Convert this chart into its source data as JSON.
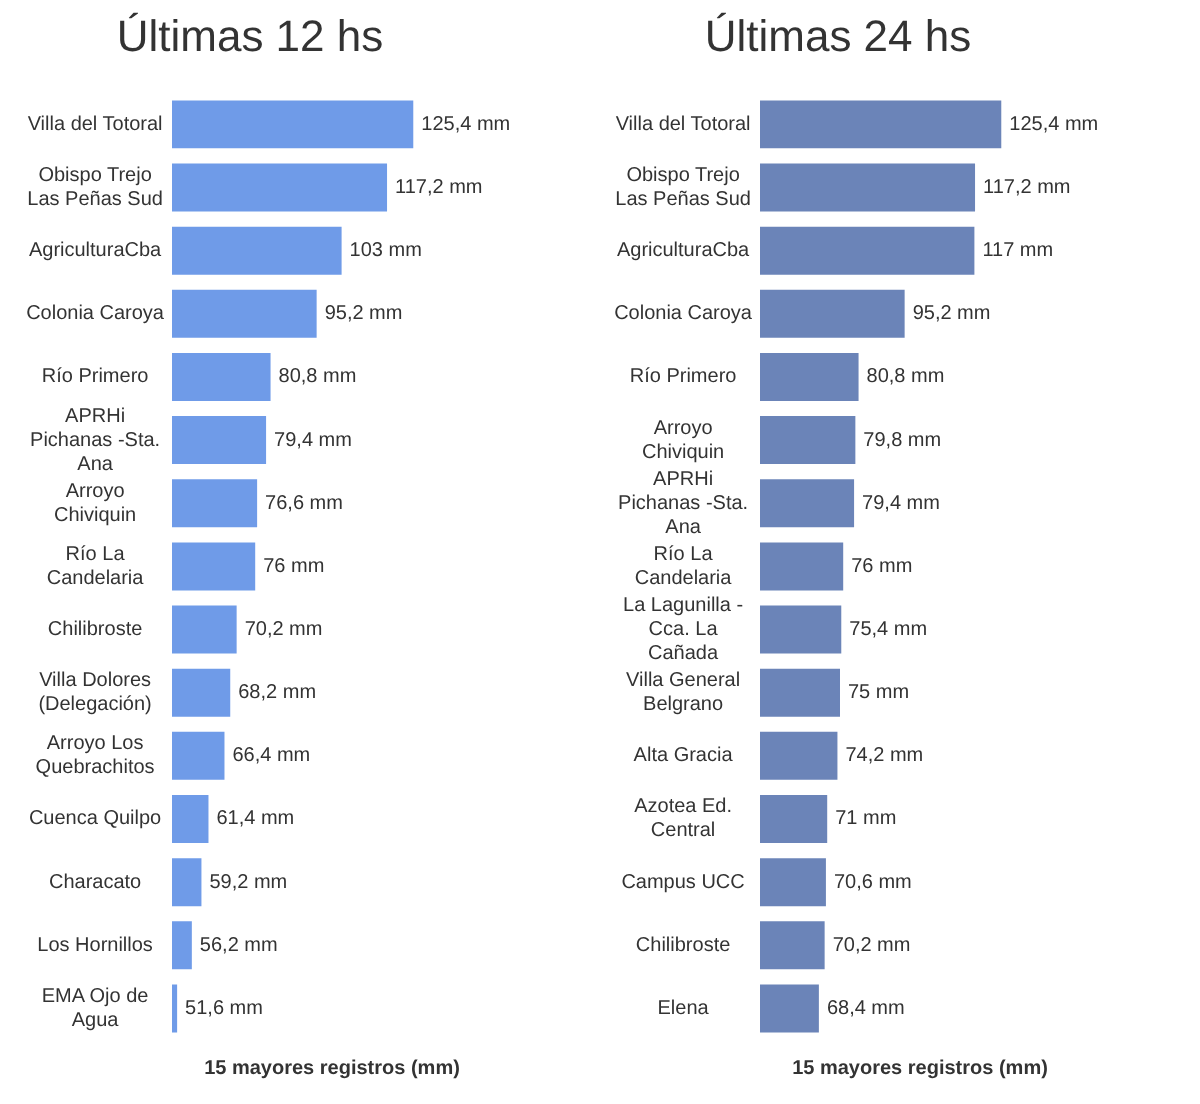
{
  "chart_data": [
    {
      "type": "bar",
      "orientation": "horizontal",
      "title": "Últimas 12 hs",
      "xlabel": "15 mayores registros (mm)",
      "color": "#6f9be8",
      "tick_labels": "y",
      "legend": false,
      "grid": false,
      "categories": [
        "Villa del Totoral",
        "Obispo Trejo Las Peñas Sud",
        "AgriculturaCba",
        "Colonia Caroya",
        "Río Primero",
        "APRHi Pichanas -Sta. Ana",
        "Arroyo Chiviquin",
        "Río La Candelaria",
        "Chilibroste",
        "Villa Dolores (Delegación)",
        "Arroyo Los Quebrachitos",
        "Cuenca Quilpo",
        "Characato",
        "Los Hornillos",
        "EMA Ojo de Agua"
      ],
      "values": [
        125.4,
        117.2,
        103,
        95.2,
        80.8,
        79.4,
        76.6,
        76,
        70.2,
        68.2,
        66.4,
        61.4,
        59.2,
        56.2,
        51.6
      ],
      "value_labels": [
        "125,4 mm",
        "117,2 mm",
        "103 mm",
        "95,2 mm",
        "80,8 mm",
        "79,4 mm",
        "76,6 mm",
        "76 mm",
        "70,2 mm",
        "68,2 mm",
        "66,4 mm",
        "61,4 mm",
        "59,2 mm",
        "56,2 mm",
        "51,6 mm"
      ]
    },
    {
      "type": "bar",
      "orientation": "horizontal",
      "title": "Últimas 24 hs",
      "xlabel": "15 mayores registros (mm)",
      "color": "#6b84b8",
      "tick_labels": "y",
      "legend": false,
      "grid": false,
      "categories": [
        "Villa del Totoral",
        "Obispo Trejo Las Peñas Sud",
        "AgriculturaCba",
        "Colonia Caroya",
        "Río Primero",
        "Arroyo Chiviquin",
        "APRHi Pichanas -Sta. Ana",
        "Río La Candelaria",
        "La Lagunilla - Cca. La Cañada",
        "Villa General Belgrano",
        "Alta Gracia",
        "Azotea Ed. Central",
        "Campus UCC",
        "Chilibroste",
        "Elena"
      ],
      "values": [
        125.4,
        117.2,
        117,
        95.2,
        80.8,
        79.8,
        79.4,
        76,
        75.4,
        75,
        74.2,
        71,
        70.6,
        70.2,
        68.4
      ],
      "value_labels": [
        "125,4 mm",
        "117,2 mm",
        "117 mm",
        "95,2 mm",
        "80,8 mm",
        "79,8 mm",
        "79,4 mm",
        "76 mm",
        "75,4 mm",
        "75 mm",
        "74,2 mm",
        "71 mm",
        "70,6 mm",
        "70,2 mm",
        "68,4 mm"
      ]
    }
  ]
}
